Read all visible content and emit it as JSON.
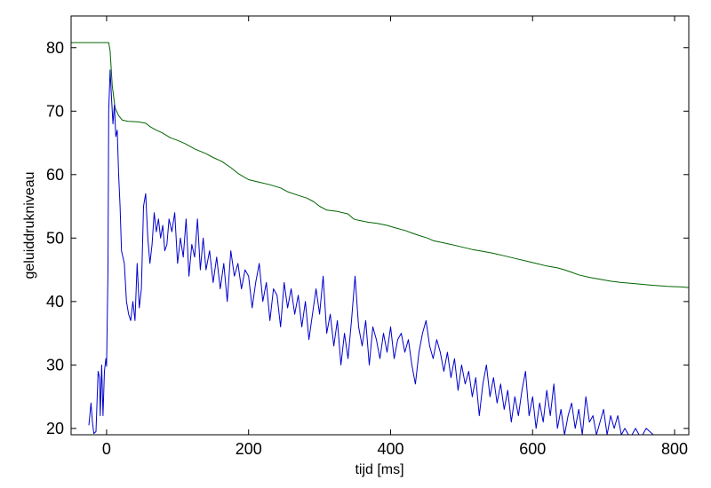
{
  "chart_data": {
    "type": "line",
    "title": "",
    "xlabel": "tijd  [ms]",
    "ylabel": "geluiddrukniveau",
    "xlim": [
      -50,
      820
    ],
    "ylim": [
      19,
      85
    ],
    "xticks": [
      0,
      200,
      400,
      600,
      800
    ],
    "yticks": [
      20,
      30,
      40,
      50,
      60,
      70,
      80
    ],
    "grid": false,
    "series": [
      {
        "color": "#006400",
        "points": [
          [
            -50,
            80.8
          ],
          [
            -20,
            80.8
          ],
          [
            3,
            80.8
          ],
          [
            5,
            79.5
          ],
          [
            8,
            74
          ],
          [
            12,
            70.5
          ],
          [
            17,
            69.3
          ],
          [
            22,
            68.6
          ],
          [
            30,
            68.4
          ],
          [
            45,
            68.3
          ],
          [
            55,
            68.1
          ],
          [
            62,
            67.5
          ],
          [
            70,
            67.0
          ],
          [
            78,
            66.6
          ],
          [
            90,
            65.8
          ],
          [
            100,
            65.4
          ],
          [
            110,
            64.9
          ],
          [
            125,
            64.0
          ],
          [
            140,
            63.3
          ],
          [
            150,
            62.7
          ],
          [
            162,
            62.1
          ],
          [
            175,
            61.1
          ],
          [
            185,
            60.2
          ],
          [
            200,
            59.2
          ],
          [
            215,
            58.8
          ],
          [
            230,
            58.4
          ],
          [
            245,
            57.9
          ],
          [
            255,
            57.3
          ],
          [
            268,
            56.8
          ],
          [
            282,
            56.3
          ],
          [
            292,
            55.7
          ],
          [
            300,
            55.0
          ],
          [
            310,
            54.4
          ],
          [
            325,
            54.2
          ],
          [
            340,
            53.8
          ],
          [
            348,
            53.0
          ],
          [
            355,
            52.8
          ],
          [
            368,
            52.5
          ],
          [
            382,
            52.3
          ],
          [
            395,
            52.0
          ],
          [
            407,
            51.6
          ],
          [
            420,
            51.2
          ],
          [
            430,
            50.8
          ],
          [
            440,
            50.4
          ],
          [
            452,
            50.0
          ],
          [
            460,
            49.6
          ],
          [
            472,
            49.3
          ],
          [
            485,
            49.0
          ],
          [
            500,
            48.6
          ],
          [
            515,
            48.2
          ],
          [
            530,
            47.9
          ],
          [
            545,
            47.6
          ],
          [
            560,
            47.2
          ],
          [
            575,
            46.8
          ],
          [
            590,
            46.4
          ],
          [
            605,
            46.0
          ],
          [
            620,
            45.6
          ],
          [
            635,
            45.3
          ],
          [
            645,
            45.0
          ],
          [
            655,
            44.6
          ],
          [
            665,
            44.2
          ],
          [
            680,
            43.8
          ],
          [
            695,
            43.5
          ],
          [
            710,
            43.2
          ],
          [
            725,
            43.0
          ],
          [
            745,
            42.8
          ],
          [
            765,
            42.6
          ],
          [
            790,
            42.4
          ],
          [
            810,
            42.3
          ],
          [
            820,
            42.2
          ]
        ]
      },
      {
        "color": "#0000cc",
        "points": [
          [
            -25,
            20.5
          ],
          [
            -22,
            24
          ],
          [
            -20,
            21
          ],
          [
            -18,
            19.2
          ],
          [
            -15,
            19.5
          ],
          [
            -12,
            29
          ],
          [
            -10,
            28
          ],
          [
            -9,
            22
          ],
          [
            -7,
            30
          ],
          [
            -5,
            22
          ],
          [
            -3,
            29
          ],
          [
            -1,
            31
          ],
          [
            0,
            29.8
          ],
          [
            2,
            45
          ],
          [
            3,
            70
          ],
          [
            5,
            76.5
          ],
          [
            7,
            72
          ],
          [
            9,
            68
          ],
          [
            11,
            71
          ],
          [
            13,
            66
          ],
          [
            15,
            67
          ],
          [
            17,
            60
          ],
          [
            19,
            55
          ],
          [
            21,
            48
          ],
          [
            23,
            47
          ],
          [
            25,
            46
          ],
          [
            28,
            40
          ],
          [
            31,
            38
          ],
          [
            34,
            37
          ],
          [
            37,
            40
          ],
          [
            40,
            37
          ],
          [
            43,
            46
          ],
          [
            46,
            39
          ],
          [
            49,
            42
          ],
          [
            52,
            55
          ],
          [
            55,
            57
          ],
          [
            58,
            50
          ],
          [
            61,
            46
          ],
          [
            64,
            49
          ],
          [
            67,
            54
          ],
          [
            70,
            51
          ],
          [
            73,
            53
          ],
          [
            76,
            50
          ],
          [
            79,
            52
          ],
          [
            82,
            48
          ],
          [
            85,
            49
          ],
          [
            88,
            53
          ],
          [
            92,
            51
          ],
          [
            96,
            54
          ],
          [
            100,
            46
          ],
          [
            104,
            50
          ],
          [
            108,
            47
          ],
          [
            112,
            53
          ],
          [
            116,
            44
          ],
          [
            120,
            49
          ],
          [
            124,
            47
          ],
          [
            128,
            53
          ],
          [
            132,
            45
          ],
          [
            136,
            50
          ],
          [
            140,
            45
          ],
          [
            145,
            48
          ],
          [
            150,
            43
          ],
          [
            155,
            47
          ],
          [
            160,
            42
          ],
          [
            165,
            46
          ],
          [
            170,
            40
          ],
          [
            175,
            48
          ],
          [
            180,
            44
          ],
          [
            185,
            46
          ],
          [
            190,
            42
          ],
          [
            195,
            45
          ],
          [
            200,
            44
          ],
          [
            205,
            39
          ],
          [
            210,
            43
          ],
          [
            215,
            46
          ],
          [
            220,
            40
          ],
          [
            225,
            43
          ],
          [
            230,
            37
          ],
          [
            235,
            42
          ],
          [
            240,
            41
          ],
          [
            245,
            36
          ],
          [
            250,
            43
          ],
          [
            255,
            39
          ],
          [
            260,
            42
          ],
          [
            265,
            38
          ],
          [
            270,
            41
          ],
          [
            275,
            36
          ],
          [
            280,
            40
          ],
          [
            285,
            34
          ],
          [
            290,
            38
          ],
          [
            295,
            42
          ],
          [
            300,
            38
          ],
          [
            305,
            44
          ],
          [
            310,
            35
          ],
          [
            315,
            38
          ],
          [
            320,
            33
          ],
          [
            325,
            37
          ],
          [
            330,
            30
          ],
          [
            335,
            35
          ],
          [
            340,
            31
          ],
          [
            345,
            37
          ],
          [
            350,
            44
          ],
          [
            355,
            36
          ],
          [
            360,
            33
          ],
          [
            365,
            37
          ],
          [
            370,
            30
          ],
          [
            375,
            36
          ],
          [
            380,
            34
          ],
          [
            385,
            31
          ],
          [
            390,
            35
          ],
          [
            395,
            32
          ],
          [
            400,
            36
          ],
          [
            405,
            31
          ],
          [
            410,
            34
          ],
          [
            415,
            35
          ],
          [
            420,
            32
          ],
          [
            425,
            34
          ],
          [
            430,
            30
          ],
          [
            435,
            27
          ],
          [
            440,
            32
          ],
          [
            445,
            35
          ],
          [
            450,
            37
          ],
          [
            455,
            33
          ],
          [
            460,
            31
          ],
          [
            465,
            34
          ],
          [
            470,
            32
          ],
          [
            475,
            29
          ],
          [
            480,
            32
          ],
          [
            485,
            28
          ],
          [
            490,
            31
          ],
          [
            495,
            26
          ],
          [
            500,
            30
          ],
          [
            505,
            27
          ],
          [
            510,
            29
          ],
          [
            515,
            25
          ],
          [
            520,
            28
          ],
          [
            525,
            22
          ],
          [
            530,
            27
          ],
          [
            535,
            30
          ],
          [
            540,
            25
          ],
          [
            545,
            28
          ],
          [
            550,
            24
          ],
          [
            555,
            27
          ],
          [
            560,
            23
          ],
          [
            565,
            26
          ],
          [
            570,
            21
          ],
          [
            575,
            25
          ],
          [
            580,
            22
          ],
          [
            585,
            26
          ],
          [
            590,
            29
          ],
          [
            595,
            22
          ],
          [
            600,
            25
          ],
          [
            605,
            20
          ],
          [
            610,
            24
          ],
          [
            615,
            21
          ],
          [
            620,
            26
          ],
          [
            625,
            22
          ],
          [
            630,
            27
          ],
          [
            635,
            20
          ],
          [
            640,
            23
          ],
          [
            645,
            19
          ],
          [
            650,
            22
          ],
          [
            655,
            24
          ],
          [
            660,
            20
          ],
          [
            665,
            23
          ],
          [
            670,
            19
          ],
          [
            675,
            25
          ],
          [
            680,
            21
          ],
          [
            685,
            22
          ],
          [
            690,
            19
          ],
          [
            695,
            21
          ],
          [
            700,
            23
          ],
          [
            705,
            19
          ],
          [
            710,
            22
          ],
          [
            715,
            20
          ],
          [
            720,
            22
          ],
          [
            725,
            19
          ],
          [
            730,
            20
          ],
          [
            735,
            19
          ],
          [
            740,
            19
          ],
          [
            745,
            20
          ],
          [
            750,
            19
          ],
          [
            755,
            19
          ],
          [
            760,
            20
          ],
          [
            770,
            19
          ],
          [
            780,
            19
          ],
          [
            790,
            19
          ],
          [
            800,
            19
          ],
          [
            810,
            19
          ],
          [
            820,
            19
          ]
        ]
      }
    ]
  }
}
